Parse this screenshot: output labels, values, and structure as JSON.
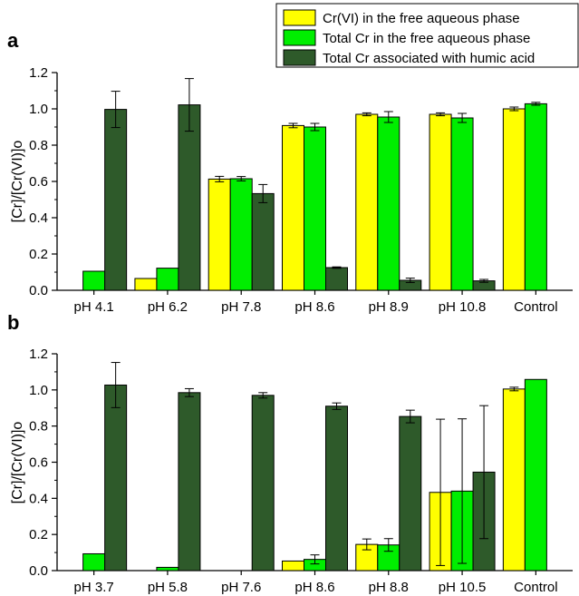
{
  "colors": {
    "cr6_free": "#ffff00",
    "total_free": "#00ee00",
    "total_humic": "#2e5a2a"
  },
  "legend": {
    "placement": "top-right",
    "items": [
      {
        "label": "Cr(VI) in the free aqueous phase",
        "color": "#ffff00"
      },
      {
        "label": "Total Cr in the free aqueous phase",
        "color": "#00ee00"
      },
      {
        "label": "Total Cr associated with humic acid",
        "color": "#2e5a2a"
      }
    ]
  },
  "chart_data": [
    {
      "type": "bar",
      "panel_label": "a",
      "ylabel": "[Cr]/[Cr(VI)]o",
      "ylim": [
        0,
        1.2
      ],
      "yticks": [
        "0.0",
        "0.2",
        "0.4",
        "0.6",
        "0.8",
        "1.0",
        "1.2"
      ],
      "categories": [
        "pH 4.1",
        "pH 6.2",
        "pH 7.8",
        "pH 8.6",
        "pH 8.9",
        "pH 10.8",
        "Control"
      ],
      "series": [
        {
          "name": "Cr(VI) in the free aqueous phase",
          "values": [
            null,
            0.065,
            0.613,
            0.908,
            0.97,
            0.97,
            1.0
          ],
          "errors": [
            null,
            null,
            0.015,
            0.012,
            0.008,
            0.008,
            0.01
          ]
        },
        {
          "name": "Total Cr in the free aqueous phase",
          "values": [
            0.105,
            0.122,
            0.615,
            0.9,
            0.955,
            0.95,
            1.028
          ],
          "errors": [
            null,
            null,
            0.012,
            0.02,
            0.03,
            0.025,
            0.008
          ]
        },
        {
          "name": "Total Cr associated with humic acid",
          "values": [
            0.997,
            1.022,
            0.533,
            0.125,
            0.055,
            0.052,
            null
          ],
          "errors": [
            0.1,
            0.145,
            0.05,
            0.004,
            0.012,
            0.008,
            null
          ]
        }
      ]
    },
    {
      "type": "bar",
      "panel_label": "b",
      "ylabel": "[Cr]/[Cr(VI)]o",
      "ylim": [
        0,
        1.2
      ],
      "yticks": [
        "0.0",
        "0.2",
        "0.4",
        "0.6",
        "0.8",
        "1.0",
        "1.2"
      ],
      "categories": [
        "pH 3.7",
        "pH 5.8",
        "pH 7.6",
        "pH 8.6",
        "pH 8.8",
        "pH 10.5",
        "Control"
      ],
      "series": [
        {
          "name": "Cr(VI) in the free aqueous phase",
          "values": [
            null,
            null,
            null,
            0.053,
            0.145,
            0.433,
            1.005
          ],
          "errors": [
            null,
            null,
            null,
            null,
            0.03,
            0.405,
            0.01
          ]
        },
        {
          "name": "Total Cr in the free aqueous phase",
          "values": [
            0.093,
            0.018,
            null,
            0.062,
            0.142,
            0.44,
            1.058
          ],
          "errors": [
            null,
            null,
            null,
            0.025,
            0.035,
            0.4,
            null
          ]
        },
        {
          "name": "Total Cr associated with humic acid",
          "values": [
            1.027,
            0.985,
            0.97,
            0.91,
            0.853,
            0.545,
            null
          ],
          "errors": [
            0.125,
            0.022,
            0.015,
            0.018,
            0.035,
            0.368,
            null
          ]
        }
      ]
    }
  ]
}
